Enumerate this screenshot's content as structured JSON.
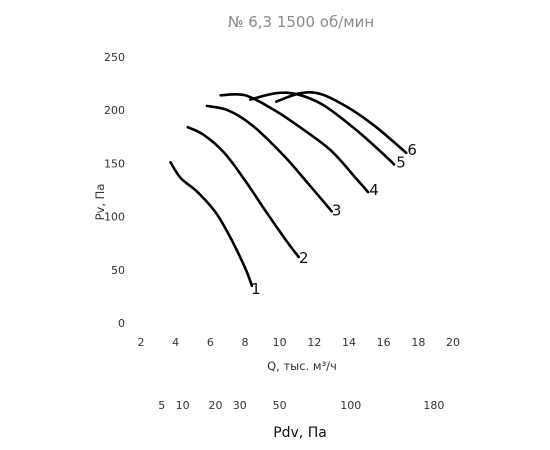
{
  "chart_data": {
    "type": "line",
    "title": "№ 6,3 1500 об/мин",
    "xlabel": "Q, тыс. м³/ч",
    "ylabel": "Pv, Па",
    "xlim": [
      2,
      20
    ],
    "ylim": [
      0,
      250
    ],
    "x_ticks": [
      2,
      4,
      6,
      8,
      10,
      12,
      14,
      16,
      18,
      20
    ],
    "y_ticks": [
      0,
      50,
      100,
      150,
      200,
      250
    ],
    "x_tick_labels": [
      "2",
      "4",
      "6",
      "8",
      "10",
      "12",
      "14",
      "16",
      "18",
      "20"
    ],
    "y_tick_labels": [
      "0",
      "50",
      "100",
      "150",
      "200",
      "250"
    ],
    "grid": false,
    "series": [
      {
        "name": "1",
        "x": [
          3.7,
          4.3,
          5.2,
          6.3,
          7.2,
          8.0,
          8.4
        ],
        "y": [
          151,
          136,
          124,
          104,
          79,
          52,
          35
        ]
      },
      {
        "name": "2",
        "x": [
          4.7,
          5.6,
          6.8,
          8.0,
          9.2,
          10.4,
          11.1
        ],
        "y": [
          184,
          177,
          160,
          134,
          105,
          77,
          62
        ]
      },
      {
        "name": "3",
        "x": [
          5.8,
          7.0,
          8.4,
          10.2,
          11.7,
          13.0
        ],
        "y": [
          204,
          200,
          186,
          158,
          130,
          105
        ]
      },
      {
        "name": "4",
        "x": [
          6.6,
          8.0,
          9.6,
          11.0,
          12.9,
          14.4,
          15.1
        ],
        "y": [
          214,
          214,
          201,
          186,
          163,
          136,
          123
        ]
      },
      {
        "name": "5",
        "x": [
          8.3,
          9.8,
          11.0,
          12.5,
          14.3,
          16.1,
          16.6
        ],
        "y": [
          210,
          216,
          215,
          205,
          183,
          157,
          149
        ]
      },
      {
        "name": "6",
        "x": [
          9.8,
          11.2,
          12.4,
          13.9,
          15.5,
          17.3
        ],
        "y": [
          208,
          216,
          215,
          203,
          185,
          160
        ]
      }
    ],
    "secondary_axis": {
      "label": "Pdv, Па",
      "ticks": [
        {
          "label": "5",
          "q": 3.2
        },
        {
          "label": "10",
          "q": 4.4
        },
        {
          "label": "20",
          "q": 6.3
        },
        {
          "label": "30",
          "q": 7.7
        },
        {
          "label": "50",
          "q": 10.0
        },
        {
          "label": "100",
          "q": 14.1
        },
        {
          "label": "180",
          "q": 18.9
        }
      ]
    }
  }
}
